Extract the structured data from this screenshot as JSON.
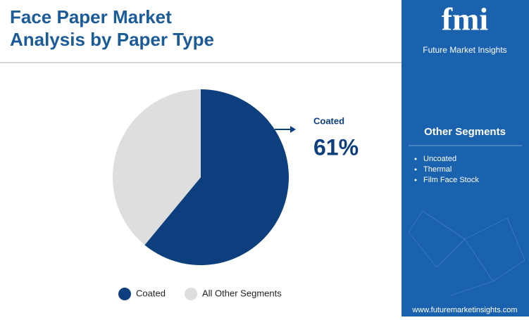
{
  "chart_data": {
    "type": "pie",
    "title": "Face Paper Market Analysis by Paper Type",
    "categories": [
      "Coated",
      "All Other Segments"
    ],
    "values": [
      61,
      39
    ],
    "value_labels": [
      "61%",
      null
    ],
    "colors": [
      "#0d3f7f",
      "#dedede"
    ]
  },
  "sidebar": {
    "logo": "fmi",
    "brand": "Future Market Insights",
    "heading": "Other Segments",
    "items": [
      "Uncoated",
      "Thermal",
      "Film Face Stock"
    ],
    "url": "www.futuremarketinsights.com"
  }
}
